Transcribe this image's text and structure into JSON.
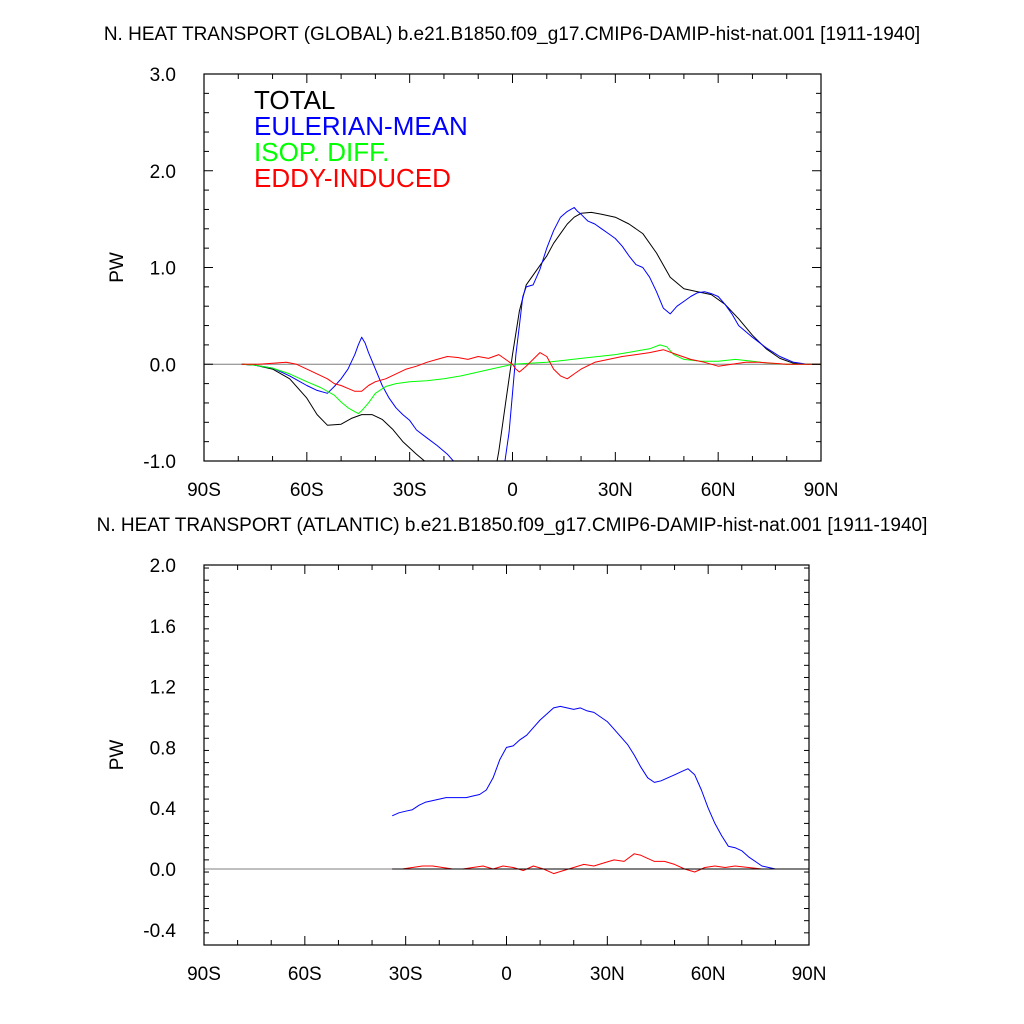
{
  "colors": {
    "total": "#000000",
    "eulerian": "#0000ff",
    "isop": "#00ff00",
    "eddy": "#ff0000",
    "zero_line": "#7f7f7f"
  },
  "chart_data": [
    {
      "type": "line",
      "title": "N. HEAT TRANSPORT (GLOBAL) b.e21.B1850.f09_g17.CMIP6-DAMIP-hist-nat.001 [1911-1940]",
      "ylabel": "PW",
      "xlabel": "",
      "xlim": [
        -90,
        90
      ],
      "ylim": [
        -1.0,
        3.0
      ],
      "x_ticks": [
        -90,
        -60,
        -30,
        0,
        30,
        60,
        90
      ],
      "x_tick_labels": [
        "90S",
        "60S",
        "30S",
        "0",
        "30N",
        "60N",
        "90N"
      ],
      "y_ticks": [
        -1.0,
        0.0,
        1.0,
        2.0,
        3.0
      ],
      "y_tick_labels": [
        "-1.0",
        "0.0",
        "1.0",
        "2.0",
        "3.0"
      ],
      "legend_placement": "top-left",
      "legend": [
        "TOTAL",
        "EULERIAN-MEAN",
        "ISOP. DIFF.",
        "EDDY-INDUCED"
      ],
      "grid": false,
      "zero_line": true,
      "series": [
        {
          "name": "TOTAL",
          "color": "#000000",
          "x": [
            -79,
            -75,
            -70,
            -65,
            -60,
            -57,
            -54,
            -50,
            -47,
            -44,
            -41,
            -38,
            -35,
            -32,
            -28,
            -24,
            -20,
            -16,
            -12,
            -8,
            -6,
            -4,
            -2,
            0,
            2,
            4,
            6,
            8,
            10,
            12,
            14,
            16,
            18,
            20,
            23,
            26,
            30,
            34,
            38,
            42,
            46,
            50,
            54,
            58,
            62,
            66,
            70,
            74,
            78,
            82,
            86,
            90
          ],
          "y": [
            0.0,
            -0.01,
            -0.05,
            -0.15,
            -0.35,
            -0.52,
            -0.63,
            -0.62,
            -0.56,
            -0.52,
            -0.52,
            -0.57,
            -0.67,
            -0.8,
            -0.93,
            -1.05,
            -1.2,
            -1.35,
            -1.5,
            -1.6,
            -1.3,
            -0.9,
            -0.4,
            0.1,
            0.55,
            0.82,
            0.92,
            1.02,
            1.12,
            1.25,
            1.35,
            1.45,
            1.52,
            1.56,
            1.57,
            1.55,
            1.52,
            1.45,
            1.35,
            1.15,
            0.9,
            0.78,
            0.75,
            0.72,
            0.62,
            0.47,
            0.3,
            0.16,
            0.06,
            0.01,
            0.0,
            0.0
          ]
        },
        {
          "name": "EULERIAN-MEAN",
          "color": "#0000ff",
          "x": [
            -79,
            -75,
            -70,
            -65,
            -60,
            -57,
            -54,
            -52,
            -50,
            -48,
            -46,
            -45,
            -44,
            -43,
            -42,
            -40,
            -38,
            -36,
            -34,
            -32,
            -30,
            -28,
            -25,
            -22,
            -19,
            -16,
            -12,
            -8,
            -5,
            -3,
            -1,
            0,
            1,
            2,
            3,
            4,
            6,
            8,
            10,
            12,
            14,
            16,
            17,
            18,
            19,
            20,
            22,
            24,
            26,
            28,
            30,
            32,
            34,
            36,
            38,
            40,
            42,
            44,
            46,
            48,
            50,
            52,
            54,
            56,
            58,
            60,
            62,
            64,
            66,
            70,
            74,
            78,
            82,
            86,
            90
          ],
          "y": [
            0.0,
            -0.01,
            -0.04,
            -0.12,
            -0.22,
            -0.27,
            -0.3,
            -0.23,
            -0.15,
            -0.05,
            0.1,
            0.2,
            0.28,
            0.22,
            0.12,
            -0.05,
            -0.22,
            -0.35,
            -0.45,
            -0.52,
            -0.58,
            -0.68,
            -0.76,
            -0.84,
            -0.93,
            -1.05,
            -1.2,
            -1.4,
            -1.5,
            -1.2,
            -0.7,
            -0.3,
            0.1,
            0.4,
            0.7,
            0.8,
            0.82,
            0.98,
            1.2,
            1.38,
            1.52,
            1.58,
            1.6,
            1.62,
            1.58,
            1.55,
            1.48,
            1.45,
            1.4,
            1.35,
            1.3,
            1.22,
            1.12,
            1.03,
            1.0,
            0.9,
            0.75,
            0.58,
            0.52,
            0.6,
            0.65,
            0.7,
            0.74,
            0.75,
            0.73,
            0.7,
            0.62,
            0.52,
            0.4,
            0.28,
            0.17,
            0.08,
            0.02,
            0.0,
            0.0
          ]
        },
        {
          "name": "ISOP. DIFF.",
          "color": "#00ff00",
          "x": [
            -79,
            -75,
            -70,
            -65,
            -60,
            -56,
            -52,
            -50,
            -48,
            -46,
            -45,
            -44,
            -42,
            -40,
            -37,
            -34,
            -30,
            -25,
            -20,
            -15,
            -10,
            -5,
            0,
            5,
            10,
            15,
            20,
            25,
            30,
            35,
            40,
            43,
            45,
            47,
            50,
            55,
            60,
            65,
            70,
            75,
            80,
            85,
            90
          ],
          "y": [
            0.0,
            -0.01,
            -0.04,
            -0.1,
            -0.18,
            -0.24,
            -0.32,
            -0.39,
            -0.45,
            -0.49,
            -0.51,
            -0.48,
            -0.4,
            -0.3,
            -0.23,
            -0.2,
            -0.18,
            -0.17,
            -0.15,
            -0.12,
            -0.08,
            -0.04,
            0.0,
            0.01,
            0.02,
            0.04,
            0.06,
            0.08,
            0.1,
            0.13,
            0.16,
            0.2,
            0.18,
            0.1,
            0.05,
            0.03,
            0.03,
            0.05,
            0.03,
            0.01,
            0.0,
            0.0,
            0.0
          ]
        },
        {
          "name": "EDDY-INDUCED",
          "color": "#ff0000",
          "x": [
            -79,
            -74,
            -70,
            -66,
            -63,
            -60,
            -57,
            -54,
            -52,
            -50,
            -48,
            -46,
            -44,
            -42,
            -40,
            -37,
            -34,
            -31,
            -28,
            -25,
            -22,
            -19,
            -16,
            -13,
            -10,
            -7,
            -4,
            -2,
            0,
            1,
            2,
            3,
            4,
            6,
            8,
            10,
            12,
            14,
            16,
            18,
            20,
            24,
            28,
            32,
            36,
            40,
            44,
            48,
            52,
            56,
            60,
            64,
            68,
            72,
            76,
            80,
            84,
            90
          ],
          "y": [
            0.0,
            0.0,
            0.01,
            0.02,
            0.0,
            -0.05,
            -0.1,
            -0.15,
            -0.2,
            -0.22,
            -0.25,
            -0.28,
            -0.28,
            -0.22,
            -0.18,
            -0.15,
            -0.1,
            -0.05,
            -0.02,
            0.02,
            0.05,
            0.08,
            0.07,
            0.05,
            0.08,
            0.06,
            0.1,
            0.05,
            0.0,
            -0.05,
            -0.08,
            -0.05,
            -0.02,
            0.05,
            0.12,
            0.08,
            -0.05,
            -0.12,
            -0.15,
            -0.1,
            -0.05,
            0.02,
            0.05,
            0.08,
            0.1,
            0.12,
            0.15,
            0.1,
            0.05,
            0.02,
            -0.02,
            0.0,
            0.02,
            0.02,
            0.01,
            0.0,
            0.0,
            0.0
          ]
        }
      ]
    },
    {
      "type": "line",
      "title": "N. HEAT TRANSPORT (ATLANTIC) b.e21.B1850.f09_g17.CMIP6-DAMIP-hist-nat.001 [1911-1940]",
      "ylabel": "PW",
      "xlabel": "",
      "xlim": [
        -90,
        90
      ],
      "ylim": [
        -0.5,
        2.0
      ],
      "x_ticks": [
        -90,
        -60,
        -30,
        0,
        30,
        60,
        90
      ],
      "x_tick_labels": [
        "90S",
        "60S",
        "30S",
        "0",
        "30N",
        "60N",
        "90N"
      ],
      "y_ticks": [
        -0.4,
        0.0,
        0.4,
        0.8,
        1.2,
        1.6,
        2.0
      ],
      "y_tick_labels": [
        "-0.4",
        "0.0",
        "0.4",
        "0.8",
        "1.2",
        "1.6",
        "2.0"
      ],
      "grid": false,
      "zero_line": true,
      "series": [
        {
          "name": "EULERIAN-MEAN",
          "color": "#0000ff",
          "x": [
            -34,
            -32,
            -30,
            -28,
            -26,
            -24,
            -22,
            -20,
            -18,
            -16,
            -14,
            -12,
            -10,
            -8,
            -6,
            -4,
            -2,
            0,
            2,
            4,
            6,
            8,
            10,
            12,
            14,
            16,
            18,
            20,
            22,
            24,
            26,
            28,
            30,
            32,
            34,
            36,
            38,
            40,
            42,
            44,
            46,
            48,
            50,
            52,
            54,
            56,
            58,
            60,
            62,
            64,
            66,
            68,
            70,
            72,
            74,
            76,
            78,
            80,
            84,
            90
          ],
          "y": [
            0.35,
            0.37,
            0.38,
            0.39,
            0.42,
            0.44,
            0.45,
            0.46,
            0.47,
            0.47,
            0.47,
            0.47,
            0.48,
            0.49,
            0.52,
            0.6,
            0.72,
            0.8,
            0.81,
            0.85,
            0.88,
            0.93,
            0.98,
            1.02,
            1.06,
            1.07,
            1.06,
            1.05,
            1.06,
            1.04,
            1.03,
            1.0,
            0.97,
            0.92,
            0.87,
            0.82,
            0.75,
            0.67,
            0.6,
            0.57,
            0.58,
            0.6,
            0.62,
            0.64,
            0.66,
            0.62,
            0.52,
            0.4,
            0.3,
            0.22,
            0.15,
            0.14,
            0.12,
            0.08,
            0.05,
            0.02,
            0.01,
            0.0,
            0.0,
            0.0
          ]
        },
        {
          "name": "EDDY-INDUCED",
          "color": "#ff0000",
          "x": [
            -34,
            -31,
            -28,
            -25,
            -22,
            -19,
            -16,
            -13,
            -10,
            -7,
            -4,
            -1,
            2,
            5,
            8,
            11,
            14,
            17,
            20,
            23,
            26,
            29,
            32,
            35,
            38,
            40,
            42,
            44,
            47,
            50,
            53,
            56,
            59,
            62,
            65,
            68,
            72,
            76,
            80,
            85,
            90
          ],
          "y": [
            0.0,
            0.0,
            0.01,
            0.02,
            0.02,
            0.01,
            0.0,
            0.0,
            0.01,
            0.02,
            0.0,
            0.02,
            0.01,
            -0.01,
            0.02,
            0.0,
            -0.03,
            -0.01,
            0.01,
            0.03,
            0.02,
            0.04,
            0.06,
            0.05,
            0.1,
            0.09,
            0.07,
            0.05,
            0.05,
            0.03,
            0.0,
            -0.02,
            0.01,
            0.02,
            0.01,
            0.02,
            0.01,
            0.0,
            0.0,
            0.0,
            0.0
          ]
        },
        {
          "name": "TOTAL",
          "color": "#000000",
          "x": [
            -34,
            90
          ],
          "y": [
            0.0,
            0.0
          ]
        }
      ]
    }
  ]
}
